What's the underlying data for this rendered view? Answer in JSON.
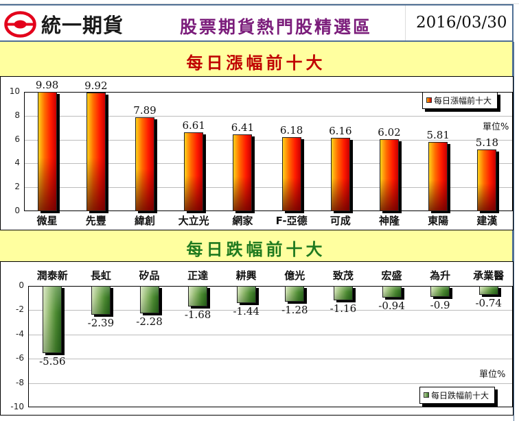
{
  "header": {
    "brand": "統一期貨",
    "title": "股票期貨熱門股精選區",
    "date": "2016/03/30",
    "logo_colors": {
      "ring": "#e3001b",
      "center": "#e3001b"
    }
  },
  "gainers": {
    "band_title": "每日漲幅前十大",
    "legend": "每日漲幅前十大",
    "unit": "單位%"
  },
  "losers": {
    "band_title": "每日跌幅前十大",
    "legend": "每日跌幅前十大",
    "unit": "單位%"
  },
  "colors": {
    "gainer_bar": "#ff3300",
    "loser_bar": "#4e8c33",
    "band_bg": "#ffff9f",
    "gainer_title": "#c00000",
    "loser_title": "#1f7a1f",
    "page_title": "#7b1d7b",
    "border": "#4f6f94"
  },
  "chart_data": [
    {
      "type": "bar",
      "title": "每日漲幅前十大",
      "categories": [
        "微星",
        "先豐",
        "緯創",
        "大立光",
        "網家",
        "F-亞德",
        "可成",
        "神隆",
        "東陽",
        "建漢"
      ],
      "values": [
        9.98,
        9.92,
        7.89,
        6.61,
        6.41,
        6.18,
        6.16,
        6.02,
        5.81,
        5.18
      ],
      "labels": [
        "9.98",
        "9.92",
        "7.89",
        "6.61",
        "6.41",
        "6.18",
        "6.16",
        "6.02",
        "5.81",
        "5.18"
      ],
      "xlabel": "",
      "ylabel": "單位%",
      "ylim": [
        0,
        10
      ],
      "yticks": [
        "0",
        "2",
        "4",
        "6",
        "8",
        "10"
      ],
      "grid": true,
      "legend": [
        "每日漲幅前十大"
      ],
      "legend_position": "top-right"
    },
    {
      "type": "bar",
      "title": "每日跌幅前十大",
      "categories": [
        "潤泰新",
        "長虹",
        "矽品",
        "正達",
        "耕興",
        "億光",
        "致茂",
        "宏盛",
        "為升",
        "承業醫"
      ],
      "values": [
        -5.56,
        -2.39,
        -2.28,
        -1.68,
        -1.44,
        -1.28,
        -1.16,
        -0.94,
        -0.9,
        -0.74
      ],
      "labels": [
        "-5.56",
        "-2.39",
        "-2.28",
        "-1.68",
        "-1.44",
        "-1.28",
        "-1.16",
        "-0.94",
        "-0.9",
        "-0.74"
      ],
      "xlabel": "",
      "ylabel": "單位%",
      "ylim": [
        -10,
        0
      ],
      "yticks": [
        "0",
        "-2",
        "-4",
        "-6",
        "-8",
        "-10"
      ],
      "grid": true,
      "legend": [
        "每日跌幅前十大"
      ],
      "legend_position": "bottom-right"
    }
  ]
}
